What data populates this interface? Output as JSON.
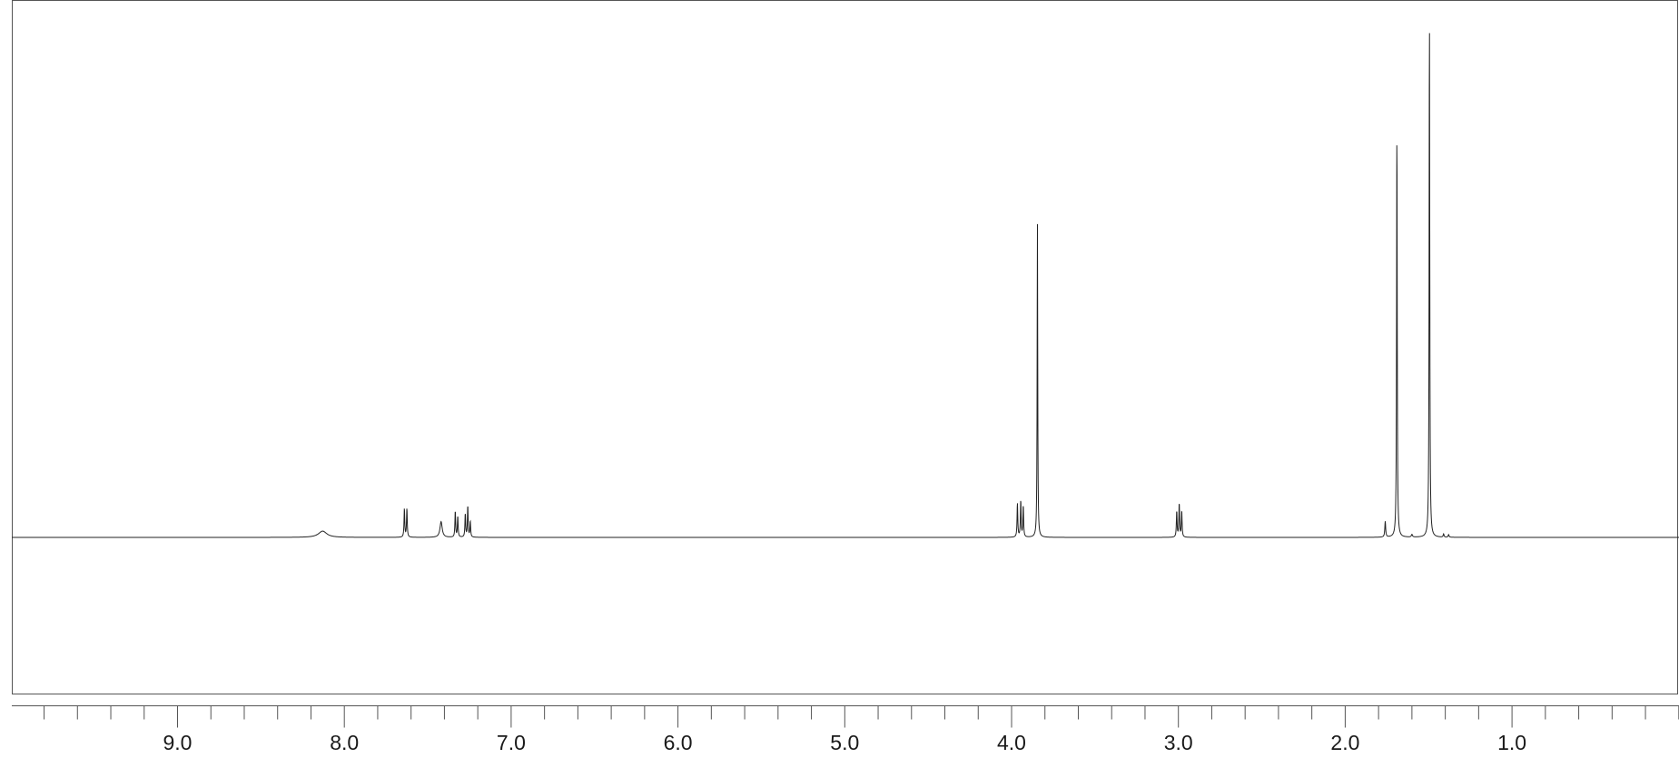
{
  "chart_data": {
    "type": "line",
    "title": "",
    "xlabel": "",
    "ylabel": "",
    "xlim": [
      10.0,
      0.0
    ],
    "ylim": [
      -0.4,
      1.25
    ],
    "grid": false,
    "x_axis_reversed": true,
    "tick_labels": [
      "9.0",
      "8.0",
      "7.0",
      "6.0",
      "5.0",
      "4.0",
      "3.0",
      "2.0",
      "1.0"
    ],
    "tick_values": [
      9.0,
      8.0,
      7.0,
      6.0,
      5.0,
      4.0,
      3.0,
      2.0,
      1.0
    ],
    "minor_tick_step": 0.2,
    "series": [
      {
        "peaks": [
          {
            "shift": 8.13,
            "intensity": 0.012,
            "width": 0.03
          },
          {
            "shift": 7.64,
            "intensity": 0.055,
            "width": 0.0025
          },
          {
            "shift": 7.625,
            "intensity": 0.055,
            "width": 0.0025
          },
          {
            "shift": 7.42,
            "intensity": 0.03,
            "width": 0.008
          },
          {
            "shift": 7.335,
            "intensity": 0.05,
            "width": 0.0025
          },
          {
            "shift": 7.32,
            "intensity": 0.04,
            "width": 0.0025
          },
          {
            "shift": 7.275,
            "intensity": 0.045,
            "width": 0.0025
          },
          {
            "shift": 7.26,
            "intensity": 0.06,
            "width": 0.0025
          },
          {
            "shift": 7.245,
            "intensity": 0.03,
            "width": 0.0025
          },
          {
            "shift": 3.965,
            "intensity": 0.065,
            "width": 0.0025
          },
          {
            "shift": 3.945,
            "intensity": 0.07,
            "width": 0.0025
          },
          {
            "shift": 3.93,
            "intensity": 0.06,
            "width": 0.0025
          },
          {
            "shift": 3.845,
            "intensity": 0.6,
            "width": 0.002
          },
          {
            "shift": 3.01,
            "intensity": 0.05,
            "width": 0.0025
          },
          {
            "shift": 2.995,
            "intensity": 0.065,
            "width": 0.0025
          },
          {
            "shift": 2.98,
            "intensity": 0.05,
            "width": 0.0025
          },
          {
            "shift": 1.76,
            "intensity": 0.03,
            "width": 0.003
          },
          {
            "shift": 1.69,
            "intensity": 0.79,
            "width": 0.0022
          },
          {
            "shift": 1.6,
            "intensity": 0.005,
            "width": 0.004
          },
          {
            "shift": 1.495,
            "intensity": 1.0,
            "width": 0.0022
          },
          {
            "shift": 1.41,
            "intensity": 0.006,
            "width": 0.003
          },
          {
            "shift": 1.38,
            "intensity": 0.005,
            "width": 0.003
          }
        ]
      }
    ]
  }
}
